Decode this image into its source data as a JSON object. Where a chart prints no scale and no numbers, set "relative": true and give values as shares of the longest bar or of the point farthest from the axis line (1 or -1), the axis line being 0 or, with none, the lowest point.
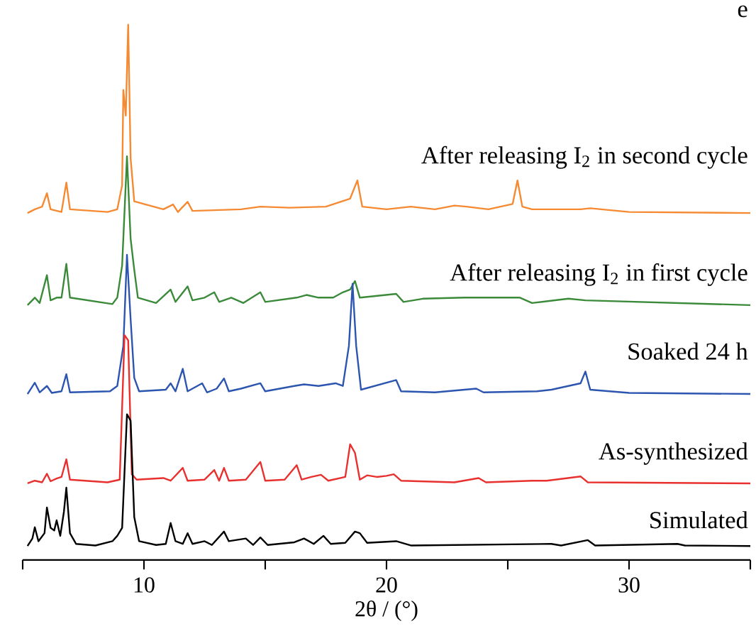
{
  "chart_data": {
    "type": "line",
    "relative": true,
    "xlabel": "2θ / (°)",
    "xlim": [
      5,
      35
    ],
    "xticks": [
      {
        "value": 5,
        "label": null
      },
      10,
      {
        "value": 15,
        "label": null
      },
      20,
      {
        "value": 25,
        "label": null
      },
      30,
      {
        "value": 35,
        "label": null
      }
    ],
    "annotations": [
      "e"
    ],
    "series": [
      {
        "name": "After releasing I$_{2}$ in second cycle",
        "color": "#f58a33",
        "x": [
          5.2,
          5.5,
          5.8,
          6.0,
          6.15,
          6.6,
          6.8,
          6.95,
          8.5,
          8.9,
          9.1,
          9.15,
          9.25,
          9.35,
          9.45,
          9.6,
          10.8,
          11.2,
          11.4,
          11.8,
          12.0,
          14.0,
          14.8,
          16.0,
          17.5,
          18.5,
          18.8,
          19.0,
          20.0,
          21.0,
          22.0,
          22.8,
          23.3,
          24.2,
          25.2,
          25.4,
          25.6,
          26.0,
          28.0,
          28.4,
          30,
          35
        ],
        "values": [
          0.648,
          0.655,
          0.66,
          0.685,
          0.655,
          0.65,
          0.705,
          0.655,
          0.65,
          0.655,
          0.7,
          0.878,
          0.83,
          1.0,
          0.75,
          0.67,
          0.655,
          0.664,
          0.65,
          0.669,
          0.652,
          0.655,
          0.66,
          0.658,
          0.66,
          0.675,
          0.709,
          0.66,
          0.655,
          0.66,
          0.655,
          0.662,
          0.66,
          0.655,
          0.665,
          0.709,
          0.66,
          0.655,
          0.655,
          0.657,
          0.65,
          0.648
        ]
      },
      {
        "name": "After releasing I$_{2}$ in first cycle",
        "color": "#3a8a3a",
        "x": [
          5.2,
          5.5,
          5.7,
          6.0,
          6.15,
          6.4,
          6.6,
          6.8,
          6.95,
          8.7,
          8.9,
          9.1,
          9.3,
          9.45,
          9.6,
          9.75,
          10.5,
          11.1,
          11.3,
          11.8,
          12.0,
          12.5,
          12.9,
          13.1,
          13.6,
          14.1,
          14.8,
          15.0,
          16.3,
          16.7,
          17.2,
          17.8,
          18.2,
          18.5,
          18.7,
          18.9,
          20.4,
          20.7,
          21.5,
          23.2,
          23.6,
          25.5,
          26.0,
          27.5,
          28.2,
          35
        ],
        "values": [
          0.476,
          0.49,
          0.48,
          0.532,
          0.485,
          0.49,
          0.49,
          0.553,
          0.49,
          0.478,
          0.49,
          0.55,
          0.754,
          0.6,
          0.542,
          0.49,
          0.48,
          0.505,
          0.482,
          0.511,
          0.485,
          0.49,
          0.5,
          0.482,
          0.49,
          0.48,
          0.5,
          0.482,
          0.49,
          0.495,
          0.49,
          0.49,
          0.5,
          0.505,
          0.521,
          0.49,
          0.497,
          0.482,
          0.488,
          0.49,
          0.49,
          0.49,
          0.48,
          0.488,
          0.485,
          0.476
        ]
      },
      {
        "name": "Soaked 24 h",
        "color": "#2c55b0",
        "x": [
          5.2,
          5.5,
          5.7,
          6.0,
          6.2,
          6.6,
          6.8,
          6.95,
          8.6,
          8.9,
          9.15,
          9.3,
          9.45,
          9.6,
          9.8,
          10.9,
          11.1,
          11.3,
          11.6,
          11.8,
          12.4,
          12.6,
          13.0,
          13.3,
          13.5,
          14.0,
          14.8,
          15.0,
          16.2,
          16.6,
          17.2,
          17.9,
          18.2,
          18.45,
          18.6,
          18.75,
          18.95,
          20.4,
          20.6,
          22.0,
          23.7,
          24.0,
          26.2,
          26.8,
          28.0,
          28.2,
          28.4,
          30,
          35
        ],
        "values": [
          0.31,
          0.331,
          0.313,
          0.325,
          0.312,
          0.315,
          0.347,
          0.313,
          0.315,
          0.325,
          0.4,
          0.57,
          0.45,
          0.34,
          0.315,
          0.318,
          0.33,
          0.315,
          0.357,
          0.315,
          0.33,
          0.313,
          0.32,
          0.339,
          0.315,
          0.32,
          0.33,
          0.315,
          0.325,
          0.328,
          0.325,
          0.33,
          0.325,
          0.4,
          0.516,
          0.4,
          0.318,
          0.336,
          0.315,
          0.313,
          0.32,
          0.313,
          0.315,
          0.318,
          0.33,
          0.352,
          0.318,
          0.312,
          0.31
        ]
      },
      {
        "name": "As-synthesized",
        "color": "#e8312e",
        "x": [
          5.2,
          5.5,
          5.8,
          6.0,
          6.15,
          6.4,
          6.6,
          6.8,
          6.95,
          8.5,
          9.0,
          9.2,
          9.35,
          9.5,
          9.7,
          10.8,
          11.1,
          11.6,
          11.8,
          12.5,
          12.9,
          13.1,
          13.3,
          13.5,
          14.2,
          14.8,
          15.0,
          15.8,
          16.3,
          16.5,
          16.9,
          17.3,
          17.6,
          18.3,
          18.5,
          18.7,
          18.9,
          19.2,
          19.6,
          20.0,
          20.3,
          20.6,
          22.8,
          23.8,
          24.1,
          26.0,
          26.6,
          28.0,
          28.3,
          35
        ],
        "values": [
          0.143,
          0.148,
          0.145,
          0.161,
          0.147,
          0.152,
          0.155,
          0.188,
          0.15,
          0.145,
          0.15,
          0.42,
          0.41,
          0.16,
          0.15,
          0.153,
          0.148,
          0.172,
          0.148,
          0.15,
          0.168,
          0.148,
          0.172,
          0.148,
          0.15,
          0.183,
          0.148,
          0.15,
          0.177,
          0.15,
          0.155,
          0.159,
          0.148,
          0.155,
          0.216,
          0.2,
          0.15,
          0.158,
          0.155,
          0.157,
          0.16,
          0.148,
          0.145,
          0.153,
          0.145,
          0.148,
          0.148,
          0.156,
          0.145,
          0.143
        ]
      },
      {
        "name": "Simulated",
        "color": "#000000",
        "x": [
          5.2,
          5.4,
          5.5,
          5.65,
          5.9,
          6.0,
          6.15,
          6.3,
          6.4,
          6.55,
          6.7,
          6.8,
          6.95,
          7.2,
          8.0,
          8.7,
          8.9,
          9.1,
          9.3,
          9.45,
          9.6,
          9.8,
          10.5,
          10.9,
          11.1,
          11.3,
          11.6,
          11.8,
          12.0,
          12.5,
          12.8,
          13.3,
          13.5,
          14.2,
          14.5,
          14.8,
          15.1,
          16.2,
          16.6,
          17.0,
          17.4,
          17.7,
          18.3,
          18.7,
          18.9,
          19.2,
          20.4,
          21.0,
          26.8,
          27.2,
          28.3,
          28.6,
          32.0,
          32.3,
          35
        ],
        "values": [
          0.026,
          0.04,
          0.061,
          0.035,
          0.05,
          0.098,
          0.06,
          0.055,
          0.074,
          0.045,
          0.09,
          0.135,
          0.05,
          0.03,
          0.027,
          0.035,
          0.045,
          0.06,
          0.272,
          0.26,
          0.08,
          0.035,
          0.028,
          0.03,
          0.069,
          0.035,
          0.03,
          0.05,
          0.03,
          0.035,
          0.028,
          0.053,
          0.035,
          0.04,
          0.028,
          0.042,
          0.028,
          0.033,
          0.04,
          0.03,
          0.045,
          0.03,
          0.032,
          0.053,
          0.05,
          0.032,
          0.035,
          0.027,
          0.03,
          0.027,
          0.037,
          0.027,
          0.03,
          0.027,
          0.026
        ]
      }
    ]
  }
}
